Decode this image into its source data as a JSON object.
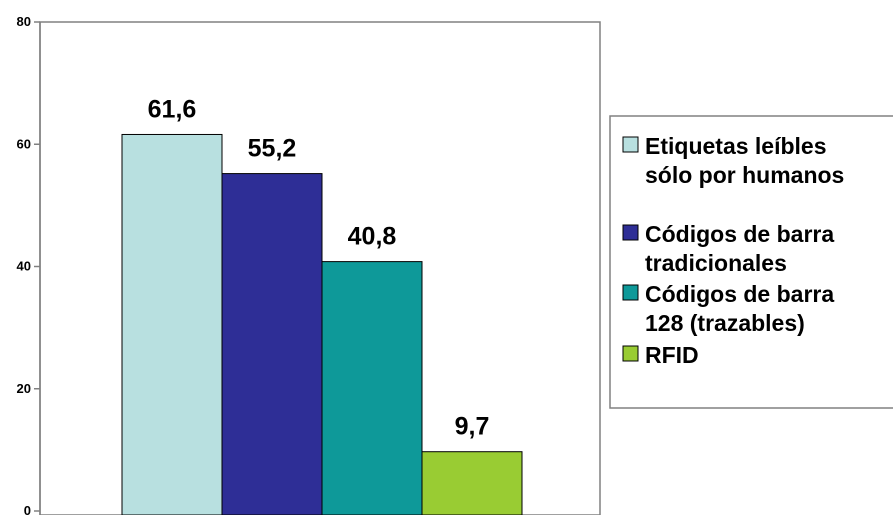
{
  "chart_data": {
    "type": "bar",
    "title": "",
    "xlabel": "",
    "ylabel": "",
    "ylim": [
      0,
      80
    ],
    "yticks": [
      "0",
      "20",
      "40",
      "60",
      "80"
    ],
    "grid": false,
    "legend_position": "right",
    "series": [
      {
        "name": "Etiquetas leíbles sólo por humanos",
        "legend_lines": [
          "Etiquetas leíbles",
          "sólo por humanos"
        ],
        "value": 61.6,
        "label": "61,6",
        "color": "#b8e0e0"
      },
      {
        "name": "Códigos de barra tradicionales",
        "legend_lines": [
          "Códigos de barra",
          "tradicionales"
        ],
        "value": 55.2,
        "label": "55,2",
        "color": "#2e2e96"
      },
      {
        "name": "Códigos de barra 128 (trazables)",
        "legend_lines": [
          "Códigos de barra",
          "128 (trazables)"
        ],
        "value": 40.8,
        "label": "40,8",
        "color": "#0e9999"
      },
      {
        "name": "RFID",
        "legend_lines": [
          "RFID"
        ],
        "value": 9.7,
        "label": "9,7",
        "color": "#99cc33"
      }
    ]
  }
}
